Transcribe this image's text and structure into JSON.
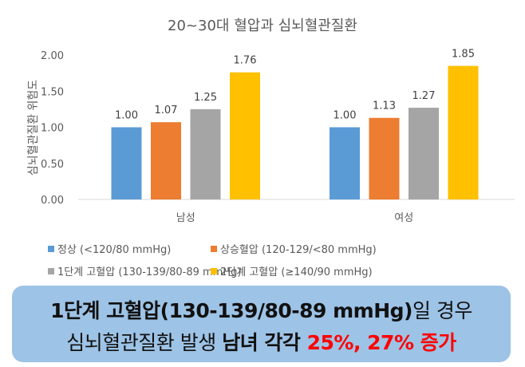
{
  "chart_data": {
    "type": "bar",
    "title": "20~30대 혈압과 심뇌혈관질환",
    "ylabel": "심뇌혈관질환 위험도",
    "xlabel": "",
    "ylim": [
      0,
      2
    ],
    "yticks": [
      "0.00",
      "0.50",
      "1.00",
      "1.50",
      "2.00"
    ],
    "grid": false,
    "legend_position": "bottom",
    "categories": [
      "남성",
      "여성"
    ],
    "series": [
      {
        "name": "정상 (<120/80 mmHg)",
        "color": "#5b9bd5",
        "values": [
          1.0,
          1.0
        ],
        "labels": [
          "1.00",
          "1.00"
        ]
      },
      {
        "name": "상승혈압 (120-129/<80 mmHg)",
        "color": "#ed7d31",
        "values": [
          1.07,
          1.13
        ],
        "labels": [
          "1.07",
          "1.13"
        ]
      },
      {
        "name": "1단계 고혈압 (130-139/80-89 mmHg)",
        "color": "#a5a5a5",
        "values": [
          1.25,
          1.27
        ],
        "labels": [
          "1.25",
          "1.27"
        ]
      },
      {
        "name": "2단계 고혈압 (≥140/90 mmHg)",
        "color": "#ffc000",
        "values": [
          1.76,
          1.85
        ],
        "labels": [
          "1.76",
          "1.85"
        ]
      }
    ]
  },
  "callout": {
    "line1_bold": "1단계 고혈압(130-139/80-89 mmHg)",
    "line1_rest": "일 경우",
    "line2_a": "심뇌혈관질환 발생 ",
    "line2_bold": "남녀 각각 ",
    "line2_red": "25%, 27% 증가"
  }
}
